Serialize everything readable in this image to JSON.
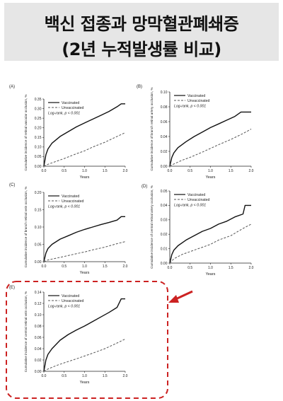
{
  "header": {
    "title_line1": "백신 접종과 망막혈관폐쇄증",
    "title_line2": "(2년 누적발생률 비교)"
  },
  "colors": {
    "vaccinated": "#111111",
    "unvaccinated": "#555555",
    "highlight": "#cc2222",
    "banner": "#e6e6e6"
  },
  "chart_data": [
    {
      "type": "line",
      "panel_label": "(A)",
      "ylabel": "Cumulative incidence of retinal vascular occlusion, %",
      "xlabel": "Years",
      "xlim": [
        0,
        2.0
      ],
      "ylim": [
        0,
        0.35
      ],
      "xticks": [
        0,
        0.5,
        1.0,
        1.5,
        2.0
      ],
      "xtick_labels": [
        "0.0",
        "0.5",
        "1.0",
        "1.5",
        "2.0"
      ],
      "yticks": [
        0,
        0.05,
        0.1,
        0.15,
        0.2,
        0.25,
        0.3,
        0.35
      ],
      "ytick_labels": [
        "0.00",
        "0.05",
        "0.10",
        "0.15",
        "0.20",
        "0.25",
        "0.30",
        "0.35"
      ],
      "legend": [
        "Vaccinated",
        "Unvaccinated"
      ],
      "annotation": "Log-rank, p < 0.001",
      "series": [
        {
          "name": "Vaccinated",
          "style": "solid",
          "x": [
            0,
            0.05,
            0.1,
            0.2,
            0.4,
            0.6,
            0.8,
            1.0,
            1.2,
            1.4,
            1.6,
            1.8,
            1.9,
            2.0
          ],
          "y": [
            0,
            0.06,
            0.09,
            0.12,
            0.155,
            0.18,
            0.205,
            0.225,
            0.245,
            0.265,
            0.285,
            0.31,
            0.325,
            0.325
          ]
        },
        {
          "name": "Unvaccinated",
          "style": "dashed",
          "x": [
            0,
            0.1,
            0.3,
            0.5,
            0.8,
            1.0,
            1.2,
            1.5,
            1.8,
            2.0
          ],
          "y": [
            0,
            0.01,
            0.025,
            0.04,
            0.065,
            0.08,
            0.1,
            0.125,
            0.155,
            0.175
          ]
        }
      ]
    },
    {
      "type": "line",
      "panel_label": "(B)",
      "ylabel": "Cumulative incidence of branch retinal artery occlusion, %",
      "xlabel": "Years",
      "xlim": [
        0,
        2.0
      ],
      "ylim": [
        0,
        0.1
      ],
      "xticks": [
        0,
        0.5,
        1.0,
        1.5,
        2.0
      ],
      "xtick_labels": [
        "0.0",
        "0.5",
        "1.0",
        "1.5",
        "2.0"
      ],
      "yticks": [
        0,
        0.02,
        0.04,
        0.06,
        0.08,
        0.1
      ],
      "ytick_labels": [
        "0.00",
        "0.02",
        "0.04",
        "0.06",
        "0.08",
        "0.10"
      ],
      "legend": [
        "Vaccinated",
        "Unvaccinated"
      ],
      "annotation": "Log-rank, p < 0.001",
      "series": [
        {
          "name": "Vaccinated",
          "style": "solid",
          "x": [
            0,
            0.05,
            0.1,
            0.2,
            0.4,
            0.6,
            0.8,
            1.0,
            1.2,
            1.4,
            1.6,
            1.75,
            1.8,
            2.0
          ],
          "y": [
            0,
            0.012,
            0.018,
            0.025,
            0.033,
            0.04,
            0.046,
            0.052,
            0.057,
            0.062,
            0.067,
            0.073,
            0.073,
            0.073
          ]
        },
        {
          "name": "Unvaccinated",
          "style": "dashed",
          "x": [
            0,
            0.1,
            0.3,
            0.5,
            0.8,
            1.0,
            1.2,
            1.5,
            1.8,
            2.0
          ],
          "y": [
            0,
            0.003,
            0.008,
            0.012,
            0.019,
            0.024,
            0.029,
            0.036,
            0.044,
            0.05
          ]
        }
      ]
    },
    {
      "type": "line",
      "panel_label": "(C)",
      "ylabel": "Cumulative incidence of branch retinal vein occlusion, %",
      "xlabel": "Years",
      "xlim": [
        0,
        2.0
      ],
      "ylim": [
        0,
        0.2
      ],
      "xticks": [
        0,
        0.5,
        1.0,
        1.5,
        2.0
      ],
      "xtick_labels": [
        "0.0",
        "0.5",
        "1.0",
        "1.5",
        "2.0"
      ],
      "yticks": [
        0,
        0.05,
        0.1,
        0.15,
        0.2
      ],
      "ytick_labels": [
        "0.00",
        "0.05",
        "0.10",
        "0.15",
        "0.20"
      ],
      "legend": [
        "Vaccinated",
        "Unvaccinated"
      ],
      "annotation": "Log-rank, p < 0.001",
      "series": [
        {
          "name": "Vaccinated",
          "style": "solid",
          "x": [
            0,
            0.05,
            0.1,
            0.2,
            0.4,
            0.6,
            0.8,
            1.0,
            1.2,
            1.4,
            1.6,
            1.8,
            1.9,
            2.0
          ],
          "y": [
            0,
            0.025,
            0.038,
            0.05,
            0.065,
            0.075,
            0.085,
            0.093,
            0.1,
            0.107,
            0.113,
            0.12,
            0.13,
            0.13
          ]
        },
        {
          "name": "Unvaccinated",
          "style": "dashed",
          "x": [
            0,
            0.1,
            0.3,
            0.5,
            0.8,
            1.0,
            1.2,
            1.5,
            1.8,
            2.0
          ],
          "y": [
            0,
            0.005,
            0.01,
            0.015,
            0.023,
            0.028,
            0.034,
            0.042,
            0.052,
            0.058
          ]
        }
      ]
    },
    {
      "type": "line",
      "panel_label": "(D)",
      "ylabel": "Cumulative incidence of central retinal artery occlusion, %",
      "xlabel": "Years",
      "xlim": [
        0,
        2.0
      ],
      "ylim": [
        0,
        0.05
      ],
      "xticks": [
        0,
        0.5,
        1.0,
        1.5,
        2.0
      ],
      "xtick_labels": [
        "0.0",
        "0.5",
        "1.0",
        "1.5",
        "2.0"
      ],
      "yticks": [
        0,
        0.01,
        0.02,
        0.03,
        0.04,
        0.05
      ],
      "ytick_labels": [
        "0.00",
        "0.01",
        "0.02",
        "0.03",
        "0.04",
        "0.05"
      ],
      "legend": [
        "Vaccinated",
        "Unvaccinated"
      ],
      "annotation": "Log-rank, p < 0.001",
      "series": [
        {
          "name": "Vaccinated",
          "style": "solid",
          "x": [
            0,
            0.05,
            0.1,
            0.2,
            0.4,
            0.6,
            0.8,
            1.0,
            1.2,
            1.4,
            1.6,
            1.8,
            1.85,
            2.0
          ],
          "y": [
            0,
            0.006,
            0.009,
            0.012,
            0.016,
            0.019,
            0.022,
            0.024,
            0.027,
            0.029,
            0.032,
            0.034,
            0.04,
            0.04
          ]
        },
        {
          "name": "Unvaccinated",
          "style": "dashed",
          "x": [
            0,
            0.1,
            0.3,
            0.5,
            0.8,
            1.0,
            1.2,
            1.5,
            1.8,
            2.0
          ],
          "y": [
            0,
            0.003,
            0.006,
            0.008,
            0.011,
            0.013,
            0.016,
            0.019,
            0.024,
            0.027
          ]
        }
      ]
    },
    {
      "type": "line",
      "panel_label": "(E)",
      "ylabel": "Cumulative incidence of central retinal vein occlusion, %",
      "xlabel": "Years",
      "xlim": [
        0,
        2.0
      ],
      "ylim": [
        0,
        0.14
      ],
      "xticks": [
        0,
        0.5,
        1.0,
        1.5,
        2.0
      ],
      "xtick_labels": [
        "0.0",
        "0.5",
        "1.0",
        "1.5",
        "2.0"
      ],
      "yticks": [
        0,
        0.02,
        0.04,
        0.06,
        0.08,
        0.1,
        0.12,
        0.14
      ],
      "ytick_labels": [
        "0.00",
        "0.02",
        "0.04",
        "0.06",
        "0.08",
        "0.10",
        "0.12",
        "0.14"
      ],
      "legend": [
        "Vaccinated",
        "Unvaccinated"
      ],
      "annotation": "Log-rank, p < 0.001",
      "highlighted": true,
      "series": [
        {
          "name": "Vaccinated",
          "style": "solid",
          "x": [
            0,
            0.05,
            0.1,
            0.2,
            0.4,
            0.6,
            0.8,
            1.0,
            1.2,
            1.4,
            1.6,
            1.8,
            1.9,
            2.0
          ],
          "y": [
            0,
            0.02,
            0.03,
            0.04,
            0.055,
            0.065,
            0.073,
            0.08,
            0.088,
            0.096,
            0.104,
            0.113,
            0.128,
            0.128
          ]
        },
        {
          "name": "Unvaccinated",
          "style": "dashed",
          "x": [
            0,
            0.1,
            0.3,
            0.5,
            0.8,
            1.0,
            1.2,
            1.5,
            1.8,
            2.0
          ],
          "y": [
            0,
            0.004,
            0.01,
            0.015,
            0.022,
            0.027,
            0.032,
            0.04,
            0.05,
            0.057
          ]
        }
      ]
    }
  ]
}
